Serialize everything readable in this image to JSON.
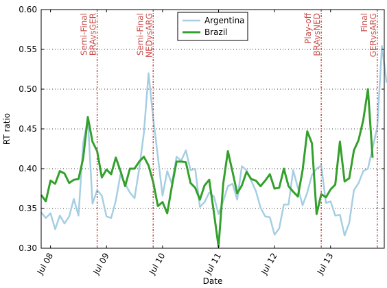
{
  "chart_data": {
    "type": "line",
    "title": "",
    "xlabel": "Date",
    "ylabel": "RT ratio",
    "ylim": [
      0.3,
      0.6
    ],
    "xlim": [
      "2014-07-07 20:00",
      "2014-07-13 23:00"
    ],
    "y_ticks": [
      "0.30",
      "0.35",
      "0.40",
      "0.45",
      "0.50",
      "0.55",
      "0.60"
    ],
    "x_ticks": [
      {
        "label": "Jul 08",
        "value": "2014-07-08"
      },
      {
        "label": "Jul 09",
        "value": "2014-07-09"
      },
      {
        "label": "Jul 10",
        "value": "2014-07-10"
      },
      {
        "label": "Jul 11",
        "value": "2014-07-11"
      },
      {
        "label": "Jul 12",
        "value": "2014-07-12"
      },
      {
        "label": "Jul 13",
        "value": "2014-07-13"
      }
    ],
    "grid": "horizontal dotted",
    "legend_position": "top-center",
    "series_sampling_hours": 2,
    "series_start": "2014-07-07 20:00",
    "series": [
      {
        "name": "Argentina",
        "color": "#a6cee3",
        "values": [
          0.345,
          0.338,
          0.344,
          0.324,
          0.341,
          0.331,
          0.34,
          0.362,
          0.341,
          0.432,
          0.463,
          0.356,
          0.373,
          0.366,
          0.34,
          0.338,
          0.36,
          0.393,
          0.381,
          0.37,
          0.363,
          0.4,
          0.445,
          0.52,
          0.463,
          0.415,
          0.366,
          0.397,
          0.381,
          0.415,
          0.41,
          0.423,
          0.398,
          0.4,
          0.352,
          0.358,
          0.37,
          0.365,
          0.343,
          0.359,
          0.378,
          0.381,
          0.361,
          0.403,
          0.398,
          0.385,
          0.372,
          0.351,
          0.34,
          0.339,
          0.317,
          0.325,
          0.355,
          0.355,
          0.398,
          0.376,
          0.354,
          0.37,
          0.392,
          0.4,
          0.404,
          0.357,
          0.359,
          0.341,
          0.342,
          0.316,
          0.332,
          0.373,
          0.382,
          0.397,
          0.4,
          0.426,
          0.452,
          0.554,
          0.508
        ]
      },
      {
        "name": "Brazil",
        "color": "#33a02c",
        "values": [
          0.367,
          0.359,
          0.385,
          0.381,
          0.397,
          0.394,
          0.382,
          0.386,
          0.387,
          0.413,
          0.465,
          0.434,
          0.422,
          0.389,
          0.399,
          0.393,
          0.414,
          0.397,
          0.378,
          0.4,
          0.4,
          0.409,
          0.415,
          0.404,
          0.383,
          0.353,
          0.358,
          0.344,
          0.378,
          0.409,
          0.409,
          0.408,
          0.382,
          0.376,
          0.361,
          0.379,
          0.386,
          0.345,
          0.302,
          0.381,
          0.422,
          0.396,
          0.369,
          0.379,
          0.396,
          0.387,
          0.385,
          0.378,
          0.385,
          0.393,
          0.375,
          0.376,
          0.4,
          0.378,
          0.371,
          0.365,
          0.398,
          0.447,
          0.432,
          0.343,
          0.368,
          0.364,
          0.374,
          0.38,
          0.434,
          0.384,
          0.388,
          0.423,
          0.436,
          0.461,
          0.5,
          0.414
        ]
      }
    ],
    "annotations": [
      {
        "label_lines": [
          "Semi-Final",
          "BRAvsGER"
        ],
        "x": "2014-07-08 20:00"
      },
      {
        "label_lines": [
          "Semi-Final",
          "NEDvsARG"
        ],
        "x": "2014-07-09 20:00"
      },
      {
        "label_lines": [
          "Play-off",
          "BRAvsNED"
        ],
        "x": "2014-07-12 20:00"
      },
      {
        "label_lines": [
          "Final",
          "GERvsARG"
        ],
        "x": "2014-07-13 20:00"
      }
    ],
    "annotation_color": "#c9504e"
  }
}
